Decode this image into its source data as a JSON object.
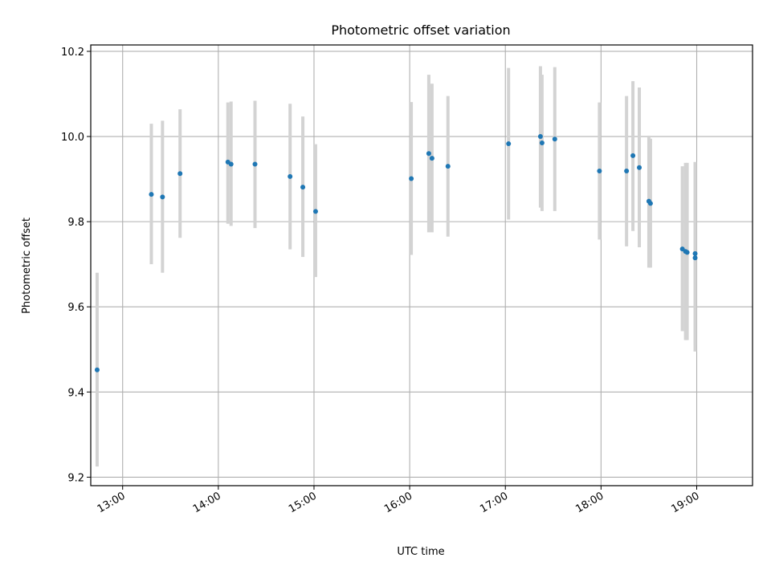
{
  "chart_data": {
    "type": "scatter",
    "title": "Photometric offset variation",
    "xlabel": "UTC time",
    "ylabel": "Photometric offset",
    "x_type": "time",
    "xlim": [
      "12:40",
      "19:35"
    ],
    "ylim": [
      9.18,
      10.215
    ],
    "x_ticks": [
      "13:00",
      "14:00",
      "15:00",
      "16:00",
      "17:00",
      "18:00",
      "19:00"
    ],
    "y_ticks": [
      9.2,
      9.4,
      9.6,
      9.8,
      10.0,
      10.2
    ],
    "grid": true,
    "legend": "none",
    "colors": {
      "point": "#1f77b4",
      "errorbar": "#d3d3d3",
      "grid": "#b0b0b0"
    },
    "points": [
      {
        "time": "12:44",
        "y": 9.452,
        "yerr_low": 9.225,
        "yerr_high": 9.68
      },
      {
        "time": "13:18",
        "y": 9.864,
        "yerr_low": 9.7,
        "yerr_high": 10.03
      },
      {
        "time": "13:25",
        "y": 9.858,
        "yerr_low": 9.68,
        "yerr_high": 10.037
      },
      {
        "time": "13:36",
        "y": 9.913,
        "yerr_low": 9.762,
        "yerr_high": 10.064
      },
      {
        "time": "14:06",
        "y": 9.94,
        "yerr_low": 9.795,
        "yerr_high": 10.08
      },
      {
        "time": "14:08",
        "y": 9.935,
        "yerr_low": 9.79,
        "yerr_high": 10.082
      },
      {
        "time": "14:23",
        "y": 9.935,
        "yerr_low": 9.785,
        "yerr_high": 10.084
      },
      {
        "time": "14:45",
        "y": 9.906,
        "yerr_low": 9.735,
        "yerr_high": 10.077
      },
      {
        "time": "14:53",
        "y": 9.881,
        "yerr_low": 9.717,
        "yerr_high": 10.047
      },
      {
        "time": "15:01",
        "y": 9.824,
        "yerr_low": 9.67,
        "yerr_high": 9.982
      },
      {
        "time": "16:01",
        "y": 9.901,
        "yerr_low": 9.722,
        "yerr_high": 10.081
      },
      {
        "time": "16:12",
        "y": 9.96,
        "yerr_low": 9.775,
        "yerr_high": 10.145
      },
      {
        "time": "16:14",
        "y": 9.949,
        "yerr_low": 9.775,
        "yerr_high": 10.124
      },
      {
        "time": "16:24",
        "y": 9.93,
        "yerr_low": 9.765,
        "yerr_high": 10.095
      },
      {
        "time": "17:02",
        "y": 9.983,
        "yerr_low": 9.805,
        "yerr_high": 10.161
      },
      {
        "time": "17:22",
        "y": 10.0,
        "yerr_low": 9.833,
        "yerr_high": 10.165
      },
      {
        "time": "17:23",
        "y": 9.985,
        "yerr_low": 9.825,
        "yerr_high": 10.145
      },
      {
        "time": "17:31",
        "y": 9.994,
        "yerr_low": 9.825,
        "yerr_high": 10.163
      },
      {
        "time": "17:59",
        "y": 9.919,
        "yerr_low": 9.758,
        "yerr_high": 10.08
      },
      {
        "time": "18:16",
        "y": 9.919,
        "yerr_low": 9.742,
        "yerr_high": 10.095
      },
      {
        "time": "18:20",
        "y": 9.955,
        "yerr_low": 9.778,
        "yerr_high": 10.13
      },
      {
        "time": "18:24",
        "y": 9.927,
        "yerr_low": 9.74,
        "yerr_high": 10.115
      },
      {
        "time": "18:30",
        "y": 9.848,
        "yerr_low": 9.692,
        "yerr_high": 10.002
      },
      {
        "time": "18:31",
        "y": 9.843,
        "yerr_low": 9.692,
        "yerr_high": 9.995
      },
      {
        "time": "18:51",
        "y": 9.736,
        "yerr_low": 9.543,
        "yerr_high": 9.93
      },
      {
        "time": "18:53",
        "y": 9.73,
        "yerr_low": 9.522,
        "yerr_high": 9.938
      },
      {
        "time": "18:54",
        "y": 9.728,
        "yerr_low": 9.522,
        "yerr_high": 9.938
      },
      {
        "time": "18:59",
        "y": 9.715,
        "yerr_low": 9.495,
        "yerr_high": 9.94
      },
      {
        "time": "18:59",
        "y": 9.725,
        "yerr_low": 9.51,
        "yerr_high": 9.94
      }
    ]
  }
}
